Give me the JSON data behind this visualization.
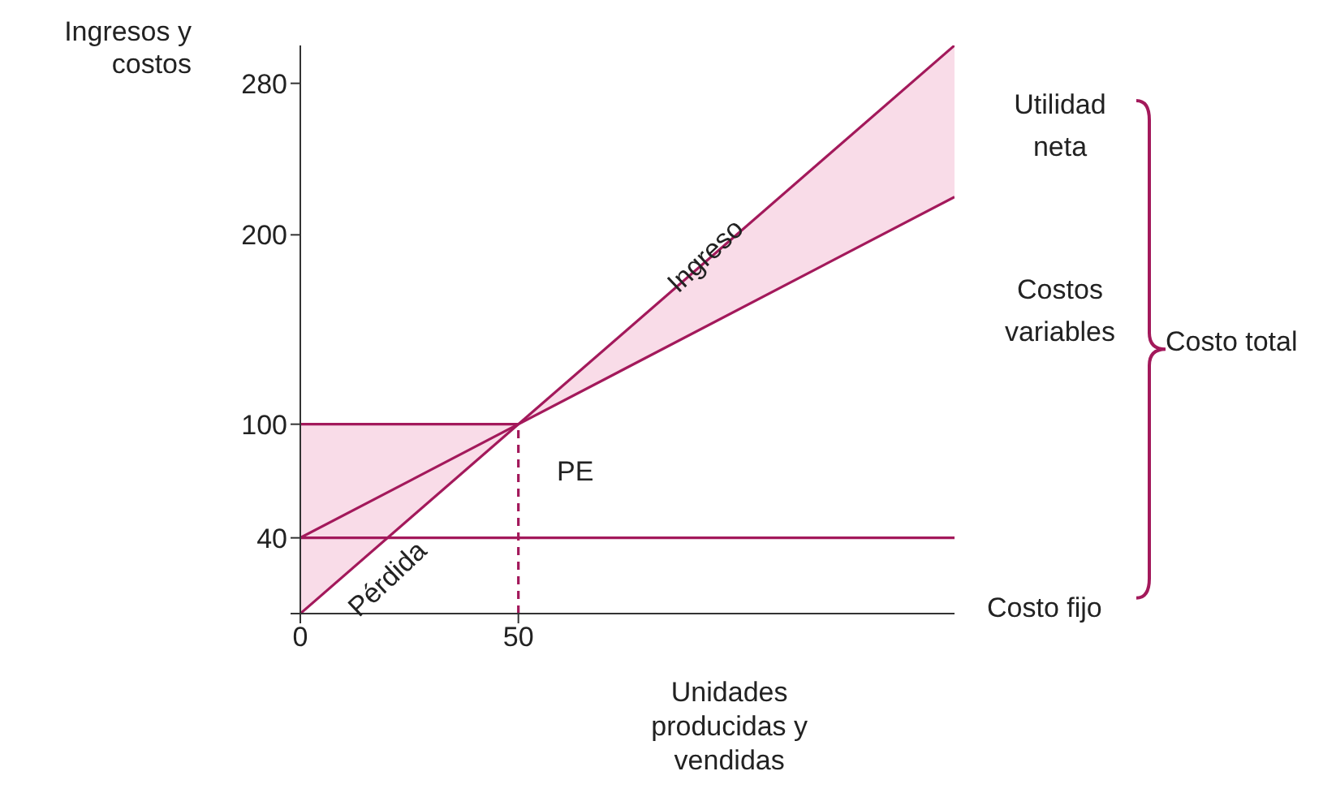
{
  "chart_data": {
    "type": "line",
    "xlabel": "Unidades producidas y vendidas",
    "ylabel": "Ingresos y costos",
    "xlim": [
      0,
      150
    ],
    "ylim": [
      0,
      300
    ],
    "xticks": [
      0,
      50
    ],
    "yticks": [
      {
        "value": 0,
        "label": null
      },
      40,
      100,
      200,
      280
    ],
    "series": [
      {
        "type": "line",
        "name": "Ingreso",
        "color": "#a3195b",
        "x": [
          0,
          150
        ],
        "values": [
          0,
          300
        ]
      },
      {
        "type": "line",
        "color": "#a3195b",
        "x": [
          0,
          50,
          150
        ],
        "values": [
          40,
          100,
          220
        ],
        "lower": [
          null,
          100,
          220
        ],
        "upper": [
          null,
          100,
          300
        ]
      },
      {
        "type": "line",
        "color": "#a3195b",
        "x": [
          0,
          50
        ],
        "values": [
          100,
          100
        ],
        "lower": [
          0,
          100
        ],
        "upper": [
          100,
          100
        ]
      },
      {
        "type": "line",
        "color": "#a3195b",
        "x": [
          50,
          50
        ],
        "values": [
          0,
          100
        ],
        "line_style": "dashed"
      }
    ],
    "ref_lines": [
      {
        "axis": "y",
        "value": 40,
        "label": "Costo fijo",
        "color": "#a3195b"
      }
    ],
    "annotations": [
      {
        "text": "Pérdida",
        "x": 20,
        "y": 40
      },
      {
        "text": "PE",
        "x": 50,
        "y": 100
      },
      "Utilidad neta",
      "Costos variables",
      "Costo total"
    ]
  }
}
